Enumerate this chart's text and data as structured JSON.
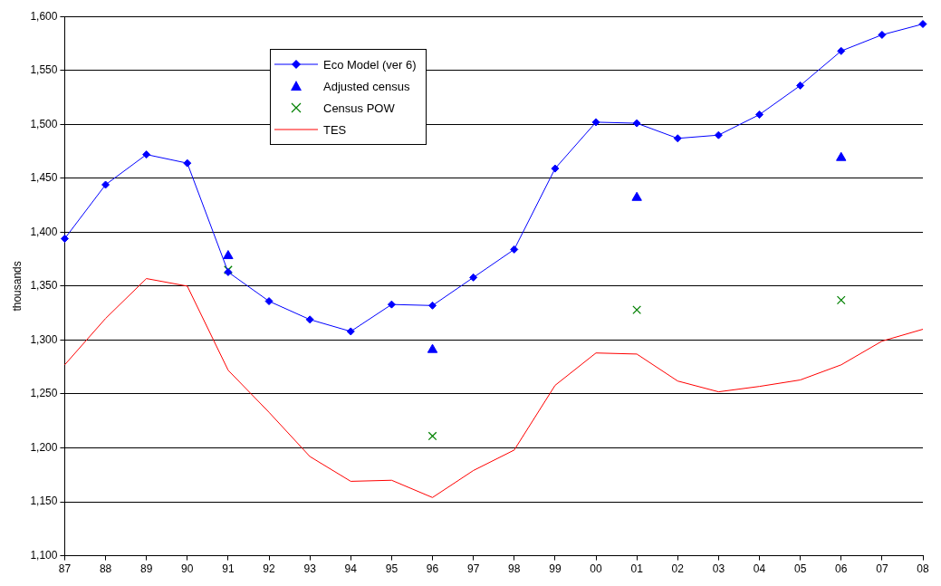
{
  "chart_data": {
    "type": "line",
    "ylabel": "thousands",
    "categories": [
      "87",
      "88",
      "89",
      "90",
      "91",
      "92",
      "93",
      "94",
      "95",
      "96",
      "97",
      "98",
      "99",
      "00",
      "01",
      "02",
      "03",
      "04",
      "05",
      "06",
      "07",
      "08"
    ],
    "series": [
      {
        "name": "Eco Model (ver 6)",
        "color": "#0000ff",
        "type": "line",
        "marker": "diamond",
        "values": [
          1394,
          1444,
          1472,
          1464,
          1363,
          1336,
          1319,
          1308,
          1333,
          1332,
          1358,
          1384,
          1459,
          1502,
          1501,
          1487,
          1490,
          1509,
          1536,
          1568,
          1583,
          1593
        ]
      },
      {
        "name": "Adjusted census",
        "color": "#0000ff",
        "type": "scatter",
        "marker": "triangle",
        "values": [
          null,
          null,
          null,
          null,
          1378,
          null,
          null,
          null,
          null,
          1291,
          null,
          null,
          null,
          null,
          1432,
          null,
          null,
          null,
          null,
          1469,
          null,
          null
        ]
      },
      {
        "name": "Census POW",
        "color": "#008000",
        "type": "scatter",
        "marker": "cross",
        "values": [
          null,
          null,
          null,
          null,
          1365,
          null,
          null,
          null,
          null,
          1211,
          null,
          null,
          null,
          null,
          1328,
          null,
          null,
          null,
          null,
          1337,
          null,
          null
        ]
      },
      {
        "name": "TES",
        "color": "#ff0000",
        "type": "line",
        "marker": "none",
        "values": [
          1277,
          1320,
          1357,
          1350,
          1272,
          1233,
          1192,
          1169,
          1170,
          1154,
          1179,
          1198,
          1258,
          1288,
          1287,
          1262,
          1252,
          1257,
          1263,
          1277,
          1299,
          1310
        ]
      }
    ],
    "ylim": [
      1100,
      1600
    ],
    "yticks": [
      {
        "value": 1100,
        "label": "1,100"
      },
      {
        "value": 1150,
        "label": "1,150"
      },
      {
        "value": 1200,
        "label": "1,200"
      },
      {
        "value": 1250,
        "label": "1,250"
      },
      {
        "value": 1300,
        "label": "1,300"
      },
      {
        "value": 1350,
        "label": "1,350"
      },
      {
        "value": 1400,
        "label": "1,400"
      },
      {
        "value": 1450,
        "label": "1,450"
      },
      {
        "value": 1500,
        "label": "1,500"
      },
      {
        "value": 1550,
        "label": "1,550"
      },
      {
        "value": 1600,
        "label": "1,600"
      }
    ],
    "grid": "y",
    "legend": "top left"
  }
}
